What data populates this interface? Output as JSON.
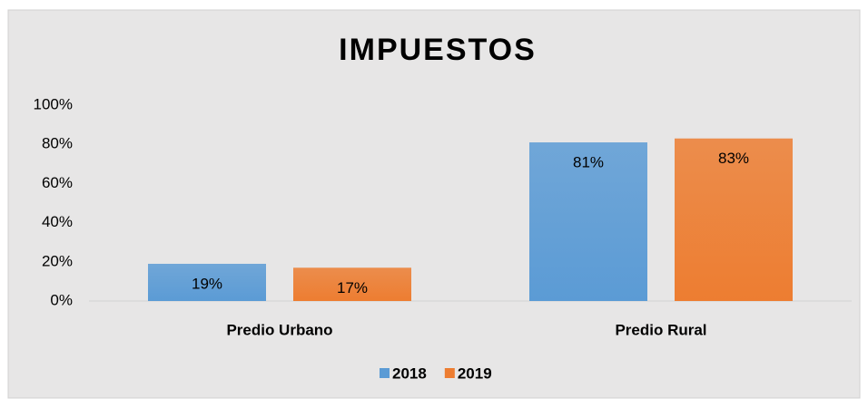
{
  "chart_data": {
    "type": "bar",
    "title": "IMPUESTOS",
    "categories": [
      "Predio Urbano",
      "Predio Rural"
    ],
    "series": [
      {
        "name": "2018",
        "color": "#5b9bd5",
        "values": [
          19,
          81
        ],
        "value_labels": [
          "19%",
          "81%"
        ]
      },
      {
        "name": "2019",
        "color": "#ed7d31",
        "values": [
          17,
          83
        ],
        "value_labels": [
          "17%",
          "83%"
        ]
      }
    ],
    "ylim": [
      0,
      100
    ],
    "yticks": [
      {
        "value": 0,
        "label": "0%"
      },
      {
        "value": 20,
        "label": "20%"
      },
      {
        "value": 40,
        "label": "40%"
      },
      {
        "value": 60,
        "label": "60%"
      },
      {
        "value": 80,
        "label": "80%"
      },
      {
        "value": 100,
        "label": "100%"
      }
    ],
    "grid": false,
    "legend": "bottom"
  }
}
